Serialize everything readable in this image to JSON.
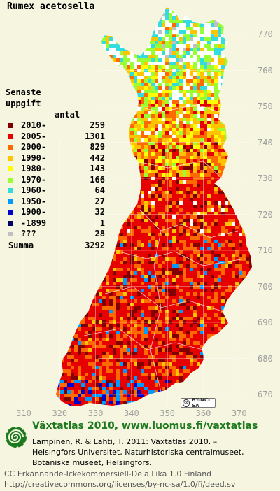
{
  "map": {
    "title": "Rumex acetosella",
    "y_axis_labels": [
      "770",
      "760",
      "750",
      "740",
      "730",
      "720",
      "710",
      "700",
      "690",
      "680",
      "670"
    ],
    "x_axis_labels": [
      "310",
      "320",
      "330",
      "340",
      "350",
      "360",
      "370"
    ],
    "colors": {
      "background": "#f5f5e0",
      "grid": "#ffffff",
      "axis_label": "#a0a0a0"
    }
  },
  "legend": {
    "heading_line1": "Senaste",
    "heading_line2": "uppgift",
    "count_header": "antal",
    "rows": [
      {
        "label": "2010-",
        "count": "259",
        "color": "#800000"
      },
      {
        "label": "2005-",
        "count": "1301",
        "color": "#e60000"
      },
      {
        "label": "2000-",
        "count": "829",
        "color": "#ff6a00"
      },
      {
        "label": "1990-",
        "count": "442",
        "color": "#ffc400"
      },
      {
        "label": "1980-",
        "count": "143",
        "color": "#ffff00"
      },
      {
        "label": "1970-",
        "count": "166",
        "color": "#99ff33"
      },
      {
        "label": "1960-",
        "count": "64",
        "color": "#33dddd"
      },
      {
        "label": "1950-",
        "count": "27",
        "color": "#0099ff"
      },
      {
        "label": "1900-",
        "count": "32",
        "color": "#0000cc"
      },
      {
        "label": "-1899",
        "count": "1",
        "color": "#000066"
      },
      {
        "label": "???",
        "count": "28",
        "color": "#c0c0c0"
      }
    ],
    "total_label": "Summa",
    "total_count": "3292"
  },
  "badge": {
    "cc": "cc",
    "text": "BY-NC-SA"
  },
  "footer": {
    "site": "Växtatlas 2010, www.luomus.fi/vaxtatlas",
    "citation": [
      "Lampinen, R. & Lahti, T. 2011: Växtatlas 2010. –",
      "Helsingfors Universitet, Naturhistoriska centralmuseet,",
      "Botaniska museet, Helsingfors."
    ],
    "license": [
      "CC Erkännande-Ickekommersiell-Dela Lika 1.0 Finland",
      "http://creativecommons.org/licenses/by-nc-sa/1.0/fi/deed.sv"
    ],
    "logo_icon": "spiral-logo-icon",
    "logo_color": "#1e7a1e"
  }
}
